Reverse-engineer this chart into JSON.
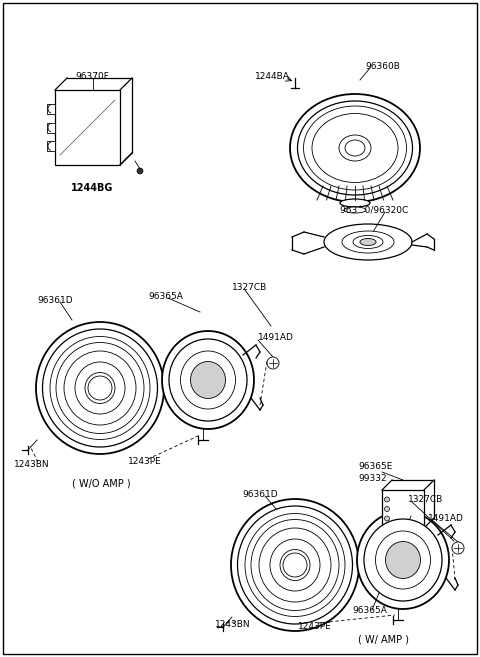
{
  "background": "#ffffff",
  "border_color": "#000000",
  "parts": {
    "top_left_label": "96370F",
    "top_left_sub": "1244BG",
    "top_right_label1": "1244BA",
    "top_right_label2": "96360B",
    "top_right_sub": "963´ 0/96320C",
    "mid_left_label1": "96361D",
    "mid_left_label2": "96365A",
    "mid_left_label3": "1327CB",
    "mid_left_label4": "1491AD",
    "mid_left_label5": "1243BN",
    "mid_left_label6": "1243PE",
    "mid_left_caption": "( W/O AMP )",
    "bot_right_label1": "96361D",
    "bot_right_label2": "96365E",
    "bot_right_label3": "99332",
    "bot_right_label4": "1327CB",
    "bot_right_label5": "1491AD",
    "bot_right_label6": "1243BN",
    "bot_right_label7": "1243PE",
    "bot_right_label8": "96365A",
    "bot_right_caption": "( W/ AMP )"
  },
  "figsize": [
    4.8,
    6.57
  ],
  "dpi": 100
}
